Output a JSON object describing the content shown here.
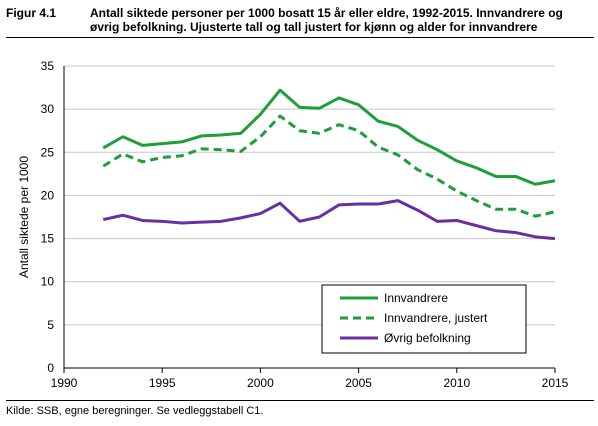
{
  "figure": {
    "label": "Figur 4.1",
    "title": "Antall siktede personer per 1000 bosatt 15 år eller eldre, 1992-2015. Innvandrere og øvrig befolkning. Ujusterte tall og tall justert for kjønn og alder for innvandrere",
    "source": "Kilde: SSB, egne beregninger. Se vedleggstabell C1."
  },
  "chart_data": {
    "type": "line",
    "title": "",
    "xlabel": "",
    "ylabel": "Antall siktede per 1000",
    "xlim": [
      1990,
      2015
    ],
    "ylim": [
      0,
      35
    ],
    "xticks": [
      1990,
      1995,
      2000,
      2005,
      2010,
      2015
    ],
    "yticks": [
      0,
      5,
      10,
      15,
      20,
      25,
      30,
      35
    ],
    "grid": "horizontal",
    "legend_position": "bottom-right",
    "x": [
      1992,
      1993,
      1994,
      1995,
      1996,
      1997,
      1998,
      1999,
      2000,
      2001,
      2002,
      2003,
      2004,
      2005,
      2006,
      2007,
      2008,
      2009,
      2010,
      2011,
      2012,
      2013,
      2014,
      2015
    ],
    "series": [
      {
        "name": "Innvandrere",
        "color": "#1e9e3a",
        "style": "solid",
        "values": [
          25.5,
          26.8,
          25.8,
          26.0,
          26.2,
          26.9,
          27.0,
          27.2,
          29.4,
          32.2,
          30.2,
          30.1,
          31.3,
          30.5,
          28.6,
          28.0,
          26.4,
          25.3,
          24.0,
          23.2,
          22.2,
          22.2,
          21.3,
          21.7
        ]
      },
      {
        "name": "Innvandrere, justert",
        "color": "#1e9e3a",
        "style": "dashed",
        "values": [
          23.4,
          24.8,
          23.9,
          24.4,
          24.6,
          25.4,
          25.3,
          25.1,
          26.8,
          29.2,
          27.5,
          27.2,
          28.2,
          27.5,
          25.6,
          24.7,
          23.0,
          21.9,
          20.5,
          19.4,
          18.4,
          18.4,
          17.6,
          18.1
        ]
      },
      {
        "name": "Øvrig befolkning",
        "color": "#6a2ea3",
        "style": "solid",
        "values": [
          17.2,
          17.7,
          17.1,
          17.0,
          16.8,
          16.9,
          17.0,
          17.4,
          17.9,
          19.1,
          17.0,
          17.5,
          18.9,
          19.0,
          19.0,
          19.4,
          18.3,
          17.0,
          17.1,
          16.5,
          15.9,
          15.7,
          15.2,
          15.0
        ]
      }
    ]
  }
}
